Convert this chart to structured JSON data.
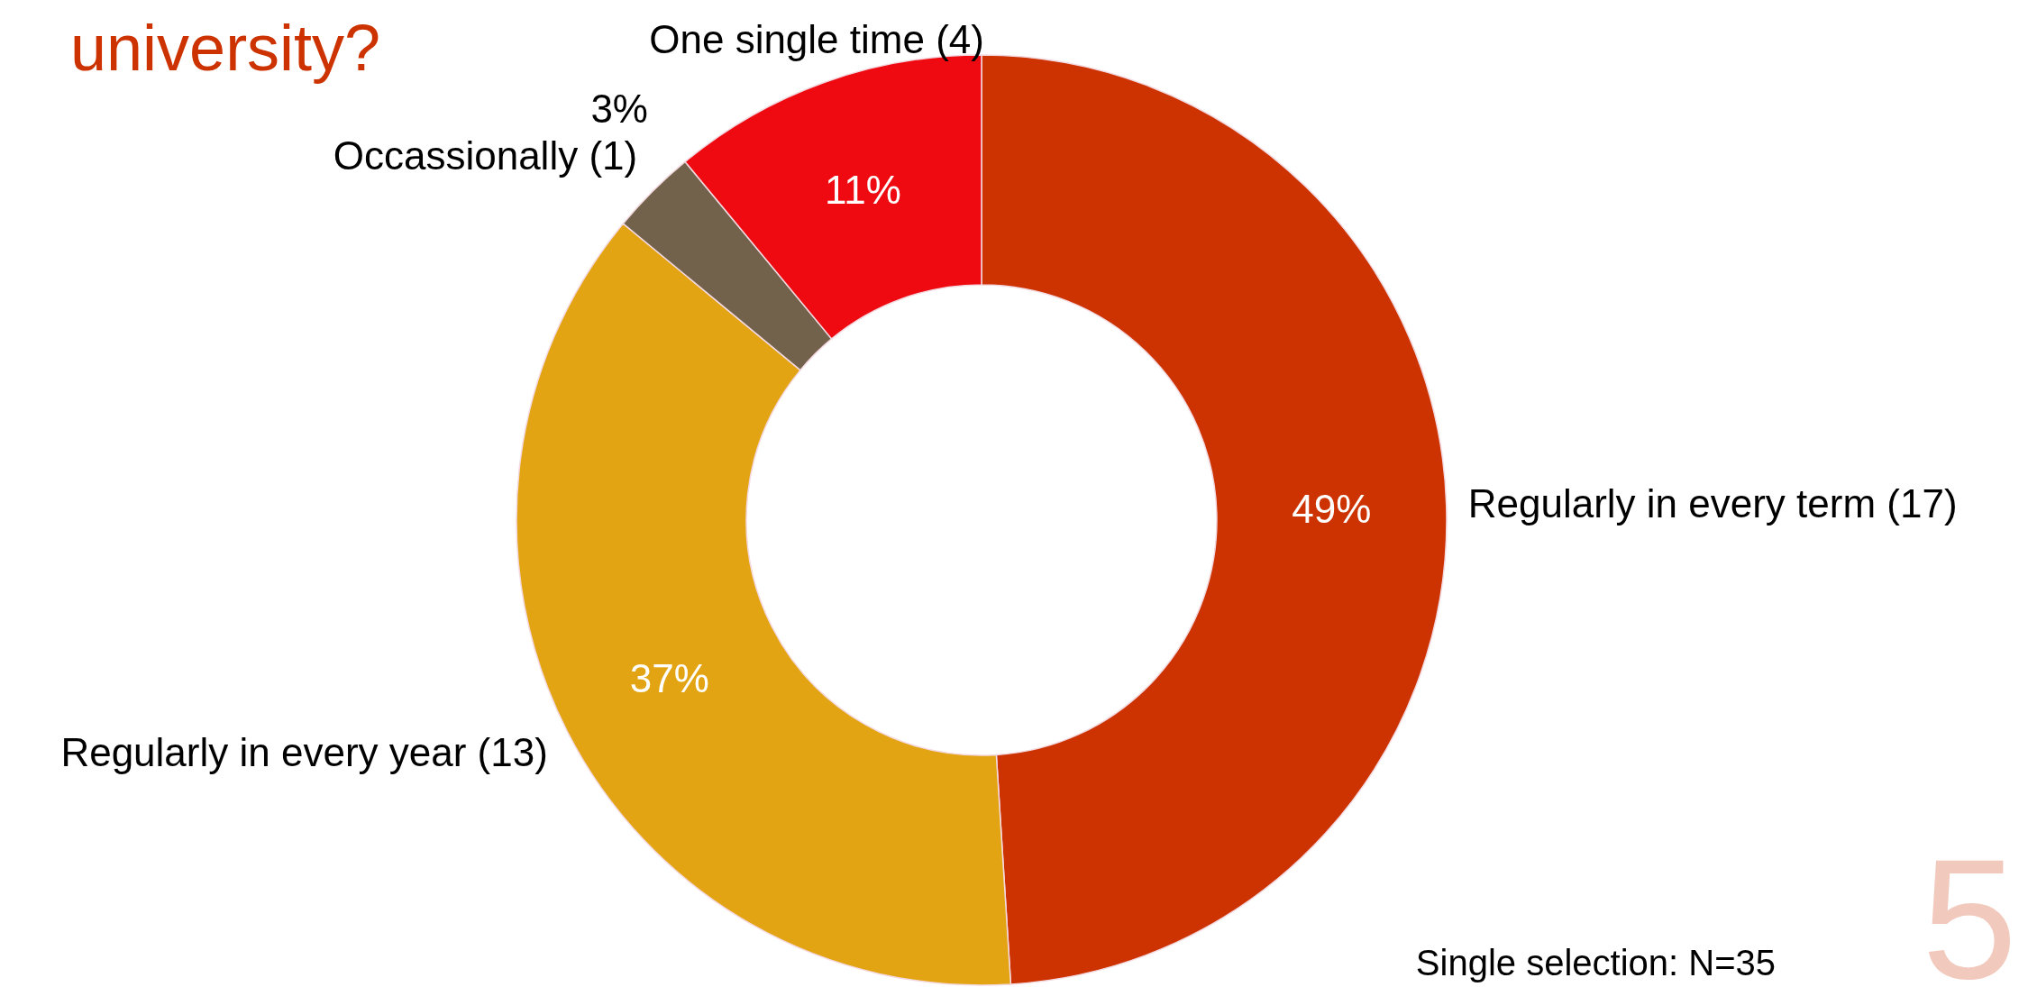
{
  "chart_data": {
    "type": "donut",
    "title": "university?",
    "categories": [
      "Regularly in every term (17)",
      "Regularly in every year (13)",
      "Occassionally (1)",
      "One single time (4)"
    ],
    "values": [
      49,
      37,
      3,
      11
    ],
    "colors": [
      "#cc3300",
      "#e3a413",
      "#73624b",
      "#ee0a10"
    ],
    "value_labels": [
      "49%",
      "37%",
      "3%",
      "11%"
    ],
    "annotations": [
      "Single selection: N=35",
      "5"
    ]
  }
}
